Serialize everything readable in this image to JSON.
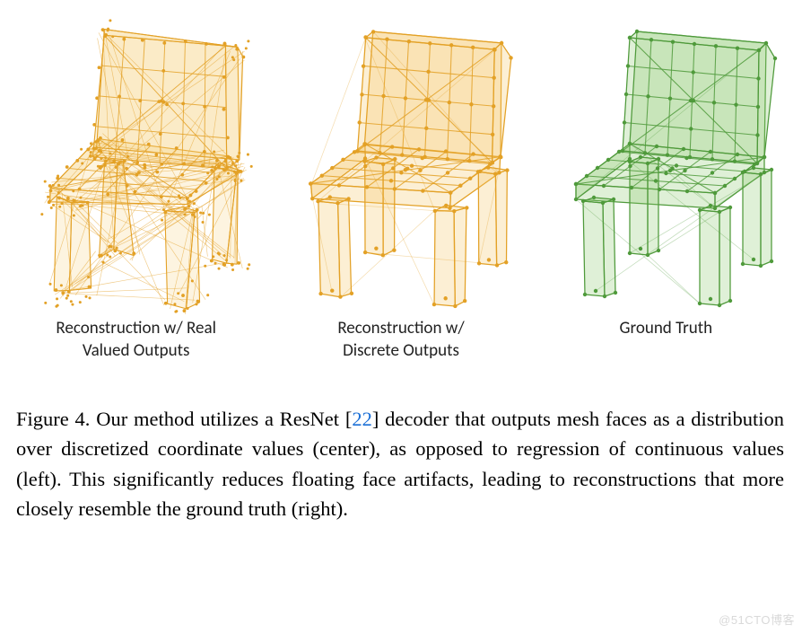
{
  "figure": {
    "panels": [
      {
        "label_line1": "Reconstruction w/ Real",
        "label_line2": "Valued Outputs",
        "color_stroke": "#e3a126",
        "color_fill": "#f4c766",
        "fill_opacity": 0.2,
        "vertex_radius": 1.9,
        "line_width": 1.1,
        "noise_level": 7,
        "extra_edge_density": 90
      },
      {
        "label_line1": "Reconstruction w/",
        "label_line2": "Discrete Outputs",
        "color_stroke": "#e3a126",
        "color_fill": "#f4c766",
        "fill_opacity": 0.28,
        "vertex_radius": 2.2,
        "line_width": 1.25,
        "noise_level": 1,
        "extra_edge_density": 12
      },
      {
        "label_line1": "Ground Truth",
        "label_line2": "",
        "color_stroke": "#4f9a3b",
        "color_fill": "#8bc96f",
        "fill_opacity": 0.28,
        "vertex_radius": 2.2,
        "line_width": 1.25,
        "noise_level": 0,
        "extra_edge_density": 10
      }
    ],
    "chair_geometry_note": "axonometric chair mesh: seat slab, backrest slab, four legs",
    "svg_viewbox": "0 0 280 340"
  },
  "caption": {
    "fig_label": "Figure 4.",
    "text_before_cite": "Our method utilizes a ResNet [",
    "cite_num": "22",
    "text_after_cite": "] decoder that outputs mesh faces as a distribution over discretized coordinate values (center), as opposed to regression of continuous values (left). This significantly reduces floating face artifacts, leading to reconstructions that more closely resemble the ground truth (right)."
  },
  "caption_font_size_pt": 17,
  "label_font_size_pt": 14,
  "watermark_text": "@51CTO博客",
  "background_color": "#ffffff"
}
